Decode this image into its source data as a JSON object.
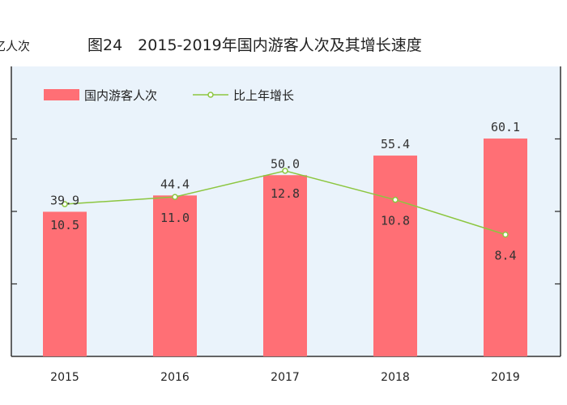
{
  "chart_data": {
    "type": "bar",
    "title": "图24　2015-2019年国内游客人次及其增长速度",
    "ylabel": "亿人次",
    "categories": [
      "2015",
      "2016",
      "2017",
      "2018",
      "2019"
    ],
    "ylim": [
      0,
      80
    ],
    "y2lim": [
      0,
      20
    ],
    "series": [
      {
        "name": "国内游客人次",
        "kind": "bar",
        "axis": "left",
        "values": [
          39.9,
          44.4,
          50.0,
          55.4,
          60.1
        ],
        "labels": [
          "39.9",
          "44.4",
          "50.0",
          "55.4",
          "60.1"
        ]
      },
      {
        "name": "比上年增长",
        "kind": "line",
        "axis": "right",
        "values": [
          10.5,
          11.0,
          12.8,
          10.8,
          8.4
        ],
        "labels": [
          "10.5",
          "11.0",
          "12.8",
          "10.8",
          "8.4"
        ]
      }
    ],
    "legend": {
      "position": "top-left"
    },
    "grid": false
  },
  "colors": {
    "bar": "#ff6f75",
    "line": "#8cc63f",
    "plot_bg": "#eaf3fb",
    "axis": "#333333"
  }
}
